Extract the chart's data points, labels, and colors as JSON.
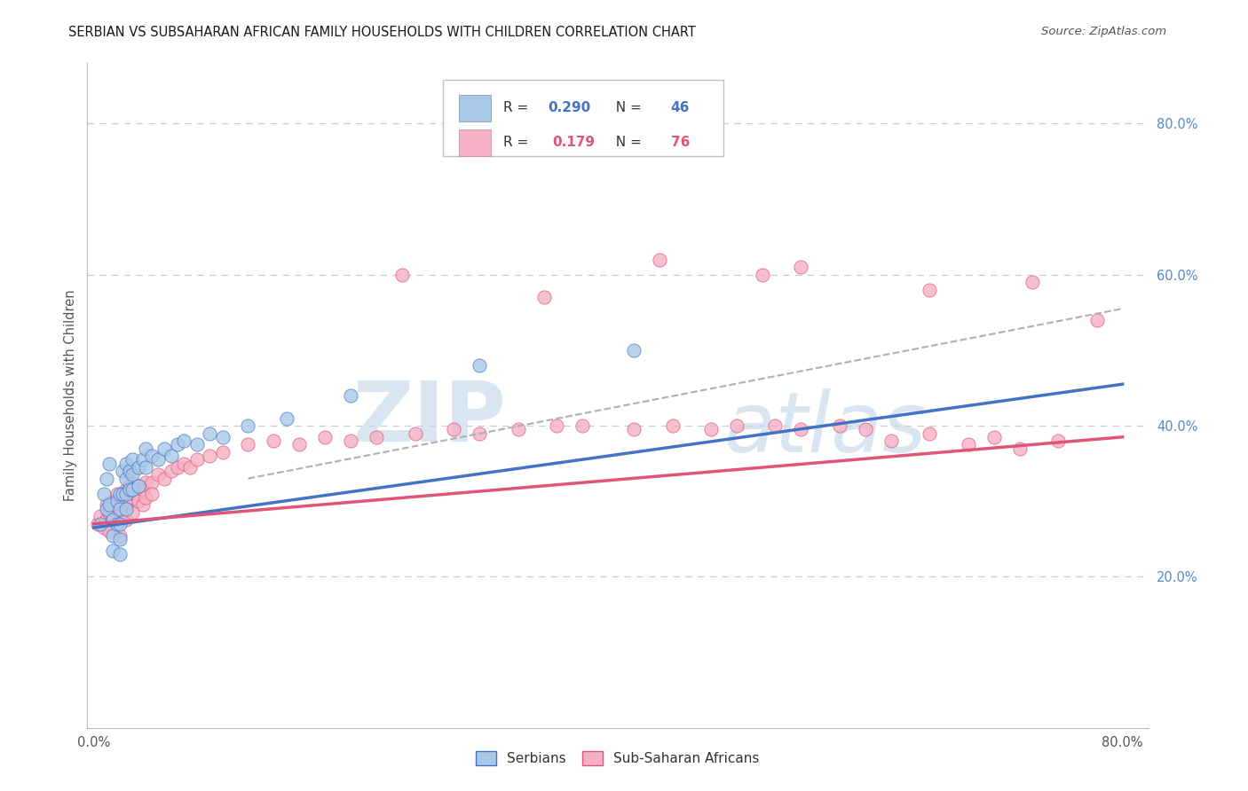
{
  "title": "SERBIAN VS SUBSAHARAN AFRICAN FAMILY HOUSEHOLDS WITH CHILDREN CORRELATION CHART",
  "source": "Source: ZipAtlas.com",
  "ylabel": "Family Households with Children",
  "ylim": [
    0.0,
    0.88
  ],
  "xlim": [
    -0.005,
    0.82
  ],
  "yticks": [
    0.2,
    0.4,
    0.6,
    0.8
  ],
  "ytick_labels": [
    "20.0%",
    "40.0%",
    "60.0%",
    "80.0%"
  ],
  "legend_R1": "0.290",
  "legend_N1": "46",
  "legend_R2": "0.179",
  "legend_N2": "76",
  "color_serbian": "#a8c8e8",
  "color_subsaharan": "#f5b0c5",
  "color_line_serbian": "#4472c4",
  "color_line_subsaharan": "#e05575",
  "color_line_dashed": "#b0b0b0",
  "watermark_zip": "ZIP",
  "watermark_atlas": "atlas",
  "bg_color": "#ffffff",
  "grid_color": "#cccccc",
  "serbian_x": [
    0.005,
    0.008,
    0.01,
    0.01,
    0.012,
    0.012,
    0.015,
    0.015,
    0.015,
    0.018,
    0.018,
    0.02,
    0.02,
    0.02,
    0.02,
    0.02,
    0.022,
    0.022,
    0.025,
    0.025,
    0.025,
    0.025,
    0.028,
    0.028,
    0.03,
    0.03,
    0.03,
    0.035,
    0.035,
    0.038,
    0.04,
    0.04,
    0.045,
    0.05,
    0.055,
    0.06,
    0.065,
    0.07,
    0.08,
    0.09,
    0.1,
    0.12,
    0.15,
    0.2,
    0.3,
    0.42
  ],
  "serbian_y": [
    0.27,
    0.31,
    0.29,
    0.33,
    0.35,
    0.295,
    0.275,
    0.255,
    0.235,
    0.3,
    0.27,
    0.31,
    0.29,
    0.27,
    0.25,
    0.23,
    0.34,
    0.31,
    0.35,
    0.33,
    0.31,
    0.29,
    0.34,
    0.315,
    0.355,
    0.335,
    0.315,
    0.345,
    0.32,
    0.355,
    0.345,
    0.37,
    0.36,
    0.355,
    0.37,
    0.36,
    0.375,
    0.38,
    0.375,
    0.39,
    0.385,
    0.4,
    0.41,
    0.44,
    0.48,
    0.5
  ],
  "subsaharan_x": [
    0.003,
    0.005,
    0.008,
    0.01,
    0.01,
    0.012,
    0.012,
    0.015,
    0.015,
    0.018,
    0.018,
    0.02,
    0.02,
    0.02,
    0.022,
    0.022,
    0.025,
    0.025,
    0.025,
    0.028,
    0.028,
    0.03,
    0.03,
    0.03,
    0.032,
    0.035,
    0.035,
    0.038,
    0.038,
    0.04,
    0.04,
    0.045,
    0.045,
    0.05,
    0.055,
    0.06,
    0.065,
    0.07,
    0.075,
    0.08,
    0.09,
    0.1,
    0.12,
    0.14,
    0.16,
    0.18,
    0.2,
    0.22,
    0.25,
    0.28,
    0.3,
    0.33,
    0.36,
    0.38,
    0.42,
    0.45,
    0.48,
    0.5,
    0.53,
    0.55,
    0.58,
    0.6,
    0.62,
    0.65,
    0.68,
    0.7,
    0.72,
    0.75,
    0.78,
    0.24,
    0.44,
    0.52,
    0.35,
    0.55,
    0.65,
    0.73
  ],
  "subsaharan_y": [
    0.27,
    0.28,
    0.265,
    0.295,
    0.275,
    0.285,
    0.26,
    0.3,
    0.28,
    0.31,
    0.29,
    0.295,
    0.275,
    0.255,
    0.305,
    0.285,
    0.315,
    0.295,
    0.275,
    0.32,
    0.3,
    0.325,
    0.305,
    0.285,
    0.31,
    0.32,
    0.3,
    0.315,
    0.295,
    0.325,
    0.305,
    0.325,
    0.31,
    0.335,
    0.33,
    0.34,
    0.345,
    0.35,
    0.345,
    0.355,
    0.36,
    0.365,
    0.375,
    0.38,
    0.375,
    0.385,
    0.38,
    0.385,
    0.39,
    0.395,
    0.39,
    0.395,
    0.4,
    0.4,
    0.395,
    0.4,
    0.395,
    0.4,
    0.4,
    0.395,
    0.4,
    0.395,
    0.38,
    0.39,
    0.375,
    0.385,
    0.37,
    0.38,
    0.54,
    0.6,
    0.62,
    0.6,
    0.57,
    0.61,
    0.58,
    0.59
  ],
  "blue_line_x0": 0.0,
  "blue_line_y0": 0.265,
  "blue_line_x1": 0.8,
  "blue_line_y1": 0.455,
  "pink_line_x0": 0.0,
  "pink_line_y0": 0.27,
  "pink_line_x1": 0.8,
  "pink_line_y1": 0.385,
  "gray_line_x0": 0.12,
  "gray_line_y0": 0.33,
  "gray_line_x1": 0.8,
  "gray_line_y1": 0.555
}
